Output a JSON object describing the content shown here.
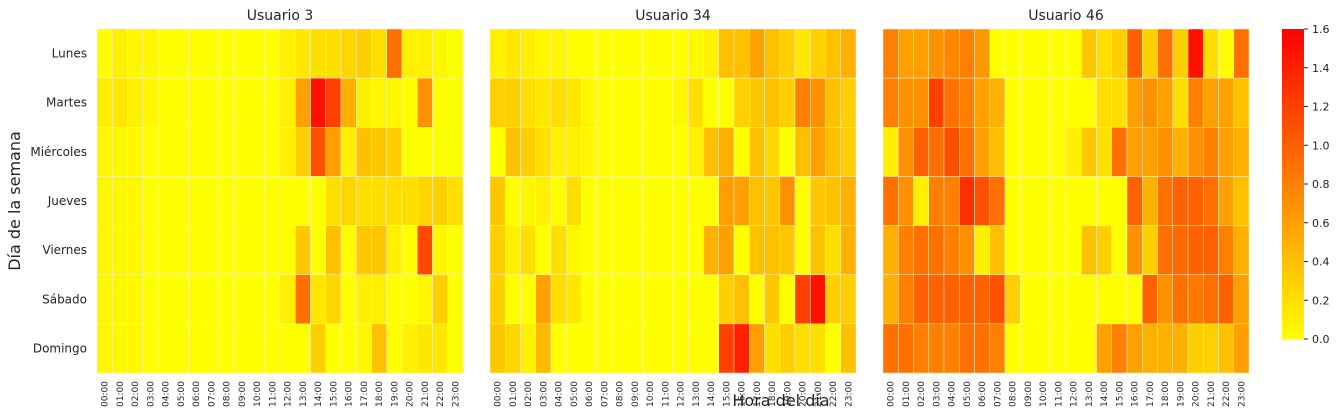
{
  "chart_data": {
    "type": "heatmap",
    "x_label": "Hora del día",
    "y_label": "Día de la semana",
    "x_categories": [
      "00:00",
      "01:00",
      "02:00",
      "03:00",
      "04:00",
      "05:00",
      "06:00",
      "07:00",
      "08:00",
      "09:00",
      "10:00",
      "11:00",
      "12:00",
      "13:00",
      "14:00",
      "15:00",
      "16:00",
      "17:00",
      "18:00",
      "19:00",
      "20:00",
      "21:00",
      "22:00",
      "23:00"
    ],
    "y_categories": [
      "Lunes",
      "Martes",
      "Miércoles",
      "Jueves",
      "Viernes",
      "Sábado",
      "Domingo"
    ],
    "colorbar": {
      "min": 0.0,
      "max": 1.6,
      "ticks": [
        "0.0",
        "0.2",
        "0.4",
        "0.6",
        "0.8",
        "1.0",
        "1.2",
        "1.4",
        "1.6"
      ],
      "colors": [
        "#ffff00",
        "#ff8000",
        "#ff0000"
      ]
    },
    "grid": true,
    "panels": [
      {
        "title": "Usuario 3",
        "values": [
          [
            0.0,
            0.1,
            0.05,
            0.05,
            0.0,
            0.0,
            0.0,
            0.0,
            0.0,
            0.0,
            0.0,
            0.0,
            0.1,
            0.15,
            0.2,
            0.2,
            0.25,
            0.3,
            0.2,
            0.9,
            0.1,
            0.1,
            0.05,
            0.0
          ],
          [
            0.1,
            0.15,
            0.1,
            0.05,
            0.0,
            0.0,
            0.0,
            0.0,
            0.0,
            0.0,
            0.0,
            0.0,
            0.1,
            0.6,
            1.5,
            1.2,
            0.5,
            0.1,
            0.05,
            0.05,
            0.0,
            0.7,
            0.0,
            0.0
          ],
          [
            0.05,
            0.05,
            0.05,
            0.0,
            0.0,
            0.0,
            0.0,
            0.0,
            0.0,
            0.0,
            0.0,
            0.0,
            0.1,
            0.3,
            1.1,
            0.6,
            0.1,
            0.4,
            0.35,
            0.3,
            0.0,
            0.0,
            0.0,
            0.0
          ],
          [
            0.05,
            0.05,
            0.05,
            0.0,
            0.0,
            0.0,
            0.0,
            0.0,
            0.0,
            0.0,
            0.0,
            0.0,
            0.0,
            0.0,
            0.0,
            0.2,
            0.25,
            0.2,
            0.2,
            0.2,
            0.2,
            0.25,
            0.3,
            0.2
          ],
          [
            0.05,
            0.05,
            0.05,
            0.0,
            0.0,
            0.0,
            0.0,
            0.0,
            0.0,
            0.0,
            0.0,
            0.0,
            0.0,
            0.35,
            0.0,
            0.4,
            0.0,
            0.35,
            0.35,
            0.1,
            0.0,
            1.15,
            0.05,
            0.0
          ],
          [
            0.05,
            0.05,
            0.05,
            0.0,
            0.0,
            0.0,
            0.0,
            0.0,
            0.0,
            0.0,
            0.0,
            0.0,
            0.1,
            0.9,
            0.15,
            0.25,
            0.0,
            0.1,
            0.1,
            0.0,
            0.0,
            0.05,
            0.3,
            0.0
          ],
          [
            0.05,
            0.05,
            0.05,
            0.0,
            0.0,
            0.0,
            0.0,
            0.0,
            0.0,
            0.0,
            0.0,
            0.0,
            0.0,
            0.0,
            0.3,
            0.0,
            0.0,
            0.05,
            0.4,
            0.0,
            0.1,
            0.15,
            0.15,
            0.0
          ]
        ]
      },
      {
        "title": "Usuario 34",
        "values": [
          [
            0.1,
            0.15,
            0.1,
            0.05,
            0.05,
            0.0,
            0.0,
            0.0,
            0.0,
            0.0,
            0.0,
            0.0,
            0.0,
            0.05,
            0.1,
            0.4,
            0.4,
            0.6,
            0.4,
            0.3,
            0.15,
            0.3,
            0.4,
            0.5
          ],
          [
            0.3,
            0.3,
            0.2,
            0.15,
            0.2,
            0.15,
            0.05,
            0.0,
            0.0,
            0.0,
            0.0,
            0.0,
            0.05,
            0.2,
            0.0,
            0.0,
            0.3,
            0.35,
            0.4,
            0.3,
            0.8,
            0.7,
            0.4,
            0.3
          ],
          [
            0.0,
            0.4,
            0.3,
            0.2,
            0.1,
            0.1,
            0.05,
            0.0,
            0.0,
            0.0,
            0.0,
            0.0,
            0.0,
            0.1,
            0.4,
            0.5,
            0.0,
            0.4,
            0.25,
            0.0,
            0.4,
            0.6,
            0.4,
            0.3
          ],
          [
            0.35,
            0.0,
            0.05,
            0.1,
            0.0,
            0.2,
            0.0,
            0.0,
            0.0,
            0.0,
            0.0,
            0.0,
            0.0,
            0.0,
            0.0,
            0.6,
            0.6,
            0.4,
            0.35,
            0.7,
            0.0,
            0.35,
            0.4,
            0.5
          ],
          [
            0.3,
            0.1,
            0.2,
            0.0,
            0.2,
            0.05,
            0.0,
            0.0,
            0.0,
            0.0,
            0.0,
            0.0,
            0.0,
            0.0,
            0.5,
            0.6,
            0.0,
            0.4,
            0.4,
            0.35,
            0.0,
            0.4,
            0.2,
            0.5
          ],
          [
            0.3,
            0.0,
            0.0,
            0.6,
            0.2,
            0.15,
            0.0,
            0.0,
            0.0,
            0.0,
            0.0,
            0.0,
            0.0,
            0.0,
            0.0,
            0.3,
            0.4,
            0.0,
            0.35,
            0.0,
            1.2,
            1.5,
            0.3,
            0.3
          ],
          [
            0.35,
            0.25,
            0.1,
            0.45,
            0.0,
            0.0,
            0.0,
            0.0,
            0.0,
            0.0,
            0.0,
            0.0,
            0.0,
            0.0,
            0.0,
            1.2,
            1.4,
            0.6,
            0.2,
            0.3,
            0.2,
            0.2,
            0.0,
            0.4
          ]
        ]
      },
      {
        "title": "Usuario 46",
        "values": [
          [
            0.8,
            0.6,
            0.6,
            0.7,
            0.75,
            0.8,
            0.65,
            0.0,
            0.0,
            0.0,
            0.0,
            0.0,
            0.0,
            0.35,
            0.2,
            0.3,
            1.0,
            0.3,
            0.9,
            0.3,
            1.5,
            0.2,
            0.0,
            0.9
          ],
          [
            0.8,
            0.7,
            0.7,
            1.2,
            0.9,
            0.8,
            0.6,
            0.5,
            0.0,
            0.0,
            0.0,
            0.0,
            0.0,
            0.0,
            0.2,
            0.2,
            0.6,
            0.7,
            0.6,
            0.2,
            0.8,
            0.6,
            0.6,
            0.4
          ],
          [
            0.1,
            0.7,
            1.0,
            0.9,
            1.1,
            0.9,
            0.6,
            0.4,
            0.0,
            0.0,
            0.0,
            0.0,
            0.1,
            0.35,
            0.2,
            0.9,
            0.6,
            0.6,
            0.7,
            0.5,
            0.7,
            0.8,
            0.6,
            0.5
          ],
          [
            0.9,
            0.7,
            0.1,
            0.8,
            0.8,
            1.3,
            1.1,
            0.9,
            0.0,
            0.0,
            0.0,
            0.0,
            0.0,
            0.0,
            0.0,
            0.0,
            1.0,
            0.5,
            0.9,
            1.0,
            1.0,
            0.9,
            0.6,
            0.4
          ],
          [
            0.5,
            0.8,
            0.9,
            0.9,
            0.8,
            0.7,
            0.1,
            0.4,
            0.0,
            0.0,
            0.0,
            0.0,
            0.0,
            0.4,
            0.3,
            0.0,
            0.7,
            0.3,
            0.9,
            0.95,
            1.0,
            1.0,
            0.8,
            0.5
          ],
          [
            0.5,
            0.8,
            1.0,
            1.0,
            1.0,
            1.0,
            1.0,
            1.1,
            0.3,
            0.0,
            0.0,
            0.0,
            0.0,
            0.0,
            0.0,
            0.0,
            0.0,
            1.0,
            0.7,
            0.9,
            0.85,
            0.9,
            1.0,
            0.6
          ],
          [
            0.9,
            0.9,
            0.8,
            0.8,
            0.8,
            0.9,
            0.9,
            0.8,
            0.0,
            0.0,
            0.0,
            0.0,
            0.0,
            0.0,
            0.6,
            0.8,
            0.6,
            0.5,
            0.5,
            0.5,
            0.3,
            0.3,
            0.4,
            0.6
          ]
        ]
      }
    ]
  }
}
